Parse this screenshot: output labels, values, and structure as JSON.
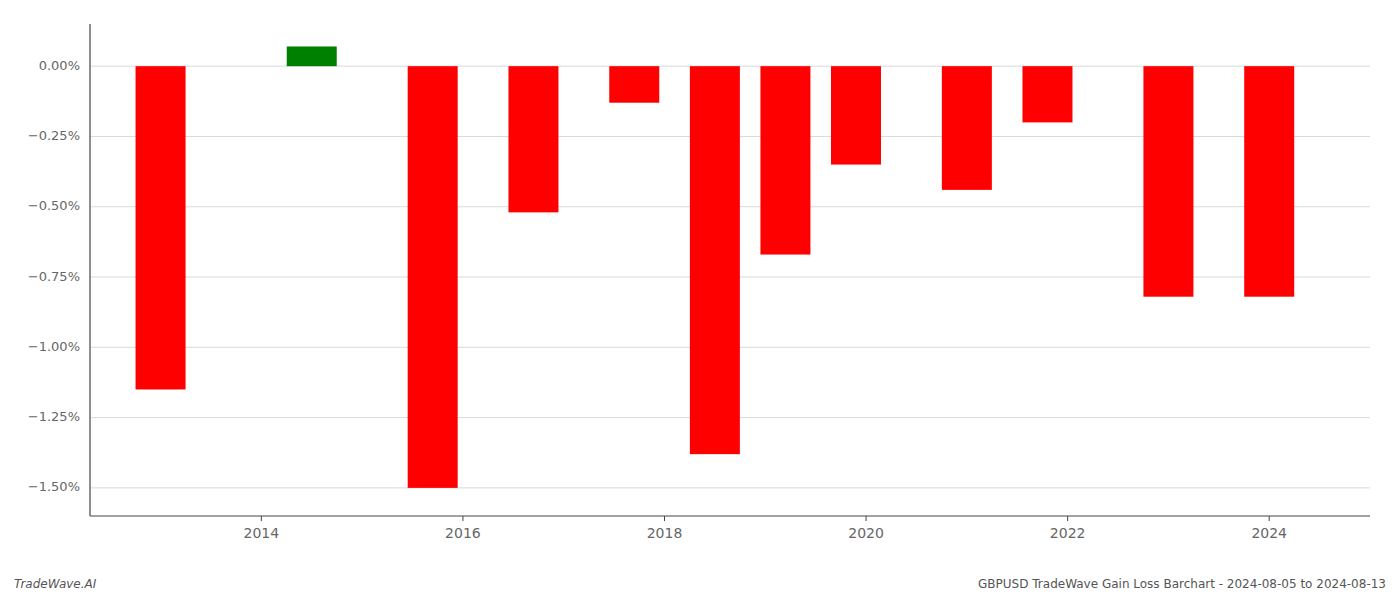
{
  "chart_data": {
    "type": "bar",
    "x": [
      2013,
      2014.5,
      2015.7,
      2016.7,
      2017.7,
      2018.5,
      2019.2,
      2019.9,
      2021.0,
      2021.8,
      2023.0,
      2024.0
    ],
    "values": [
      -1.15,
      0.07,
      -1.5,
      -0.52,
      -0.13,
      -1.38,
      -0.67,
      -0.35,
      -0.44,
      -0.2,
      -0.82,
      -0.82
    ],
    "colors": [
      "#ff0000",
      "#008000",
      "#ff0000",
      "#ff0000",
      "#ff0000",
      "#ff0000",
      "#ff0000",
      "#ff0000",
      "#ff0000",
      "#ff0000",
      "#ff0000",
      "#ff0000"
    ],
    "xlim": [
      2012.3,
      2025.0
    ],
    "xticks": [
      2014,
      2016,
      2018,
      2020,
      2022,
      2024
    ],
    "ylim": [
      -1.6,
      0.15
    ],
    "yticks": [
      {
        "value": 0.0,
        "label": "0.00%"
      },
      {
        "value": -0.25,
        "label": "−0.25%"
      },
      {
        "value": -0.5,
        "label": "−0.50%"
      },
      {
        "value": -0.75,
        "label": "−0.75%"
      },
      {
        "value": -1.0,
        "label": "−1.00%"
      },
      {
        "value": -1.25,
        "label": "−1.25%"
      },
      {
        "value": -1.5,
        "label": "−1.50%"
      }
    ],
    "grid": true,
    "annotations": [
      "TradeWave.AI",
      "GBPUSD TradeWave Gain Loss Barchart - 2024-08-05 to 2024-08-13"
    ]
  }
}
